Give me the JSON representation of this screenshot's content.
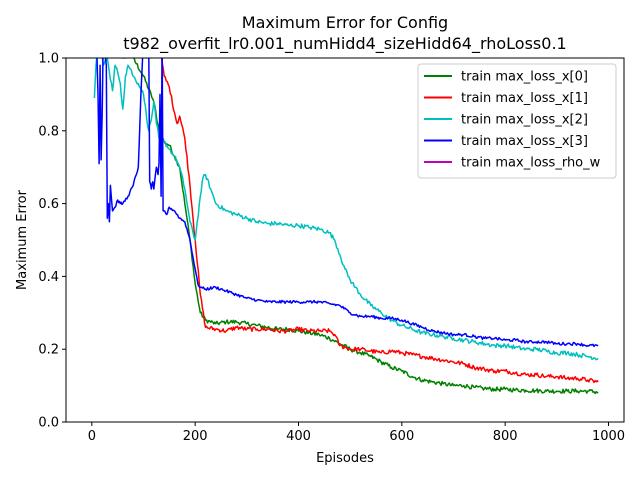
{
  "chart_data": {
    "type": "line",
    "title_line1": "Maximum Error for Config",
    "title_line2": "t982_overfit_lr0.001_numHidd4_sizeHidd64_rhoLoss0.1",
    "xlabel": "Episodes",
    "ylabel": "Maximum Error",
    "xlim": [
      -50,
      1030
    ],
    "ylim": [
      0.0,
      1.0
    ],
    "xticks": [
      0,
      200,
      400,
      600,
      800,
      1000
    ],
    "xtick_labels": [
      "0",
      "200",
      "400",
      "600",
      "800",
      "1000"
    ],
    "yticks": [
      0.0,
      0.2,
      0.4,
      0.6,
      0.8,
      1.0
    ],
    "ytick_labels": [
      "0.0",
      "0.2",
      "0.4",
      "0.6",
      "0.8",
      "1.0"
    ],
    "grid": false,
    "legend_position": "top-right",
    "series": [
      {
        "name": "train max_loss_x[0]",
        "color": "#008000",
        "noise": 0.006,
        "x": [
          20,
          40,
          60,
          80,
          100,
          120,
          130,
          140,
          150,
          160,
          170,
          180,
          190,
          200,
          210,
          220,
          240,
          260,
          280,
          300,
          320,
          340,
          360,
          380,
          400,
          420,
          440,
          460,
          480,
          500,
          520,
          540,
          560,
          580,
          600,
          620,
          640,
          660,
          680,
          700,
          720,
          740,
          760,
          780,
          800,
          820,
          840,
          860,
          880,
          900,
          920,
          940,
          960,
          980
        ],
        "y": [
          1.05,
          1.05,
          1.02,
          1.0,
          0.95,
          0.88,
          0.8,
          0.77,
          0.76,
          0.73,
          0.7,
          0.6,
          0.5,
          0.38,
          0.3,
          0.28,
          0.27,
          0.275,
          0.275,
          0.27,
          0.265,
          0.26,
          0.255,
          0.255,
          0.25,
          0.245,
          0.24,
          0.23,
          0.215,
          0.2,
          0.19,
          0.18,
          0.165,
          0.15,
          0.14,
          0.125,
          0.115,
          0.11,
          0.105,
          0.1,
          0.1,
          0.095,
          0.092,
          0.09,
          0.09,
          0.088,
          0.087,
          0.086,
          0.085,
          0.085,
          0.085,
          0.085,
          0.085,
          0.082
        ]
      },
      {
        "name": "train max_loss_x[1]",
        "color": "#ff0000",
        "noise": 0.006,
        "x": [
          20,
          40,
          60,
          80,
          100,
          120,
          135,
          140,
          150,
          160,
          165,
          170,
          180,
          190,
          200,
          210,
          220,
          240,
          260,
          280,
          300,
          320,
          340,
          360,
          380,
          400,
          420,
          440,
          460,
          470,
          480,
          500,
          520,
          540,
          560,
          580,
          600,
          620,
          640,
          660,
          680,
          700,
          720,
          740,
          760,
          780,
          800,
          820,
          840,
          860,
          880,
          900,
          920,
          940,
          960,
          980
        ],
        "y": [
          1.05,
          1.03,
          1.0,
          1.02,
          1.05,
          1.03,
          1.0,
          0.95,
          0.92,
          0.85,
          0.82,
          0.84,
          0.78,
          0.65,
          0.5,
          0.35,
          0.26,
          0.255,
          0.25,
          0.26,
          0.255,
          0.255,
          0.255,
          0.25,
          0.25,
          0.255,
          0.25,
          0.25,
          0.25,
          0.24,
          0.21,
          0.2,
          0.2,
          0.195,
          0.19,
          0.195,
          0.19,
          0.185,
          0.18,
          0.175,
          0.17,
          0.165,
          0.16,
          0.15,
          0.145,
          0.14,
          0.14,
          0.135,
          0.13,
          0.13,
          0.125,
          0.125,
          0.12,
          0.12,
          0.115,
          0.11
        ]
      },
      {
        "name": "train max_loss_x[2]",
        "color": "#00bfbf",
        "noise": 0.006,
        "x": [
          5,
          8,
          12,
          18,
          22,
          30,
          40,
          45,
          50,
          55,
          60,
          65,
          70,
          75,
          80,
          90,
          100,
          105,
          110,
          115,
          120,
          125,
          130,
          140,
          150,
          160,
          170,
          180,
          190,
          200,
          210,
          215,
          220,
          230,
          240,
          260,
          280,
          300,
          320,
          340,
          360,
          380,
          400,
          420,
          440,
          460,
          470,
          480,
          490,
          500,
          510,
          520,
          540,
          560,
          580,
          600,
          620,
          640,
          660,
          680,
          700,
          720,
          740,
          760,
          780,
          800,
          820,
          840,
          860,
          880,
          900,
          920,
          940,
          960,
          980
        ],
        "y": [
          0.89,
          0.98,
          1.05,
          1.03,
          0.98,
          1.0,
          0.91,
          0.98,
          0.96,
          0.93,
          0.86,
          0.95,
          0.98,
          0.97,
          0.95,
          0.93,
          0.9,
          0.85,
          0.8,
          0.83,
          0.88,
          0.82,
          0.78,
          0.77,
          0.75,
          0.73,
          0.7,
          0.64,
          0.55,
          0.5,
          0.62,
          0.67,
          0.68,
          0.64,
          0.6,
          0.58,
          0.57,
          0.56,
          0.55,
          0.545,
          0.545,
          0.54,
          0.54,
          0.535,
          0.53,
          0.52,
          0.5,
          0.46,
          0.42,
          0.39,
          0.37,
          0.35,
          0.32,
          0.3,
          0.28,
          0.265,
          0.255,
          0.245,
          0.24,
          0.235,
          0.23,
          0.225,
          0.22,
          0.215,
          0.21,
          0.21,
          0.205,
          0.2,
          0.2,
          0.195,
          0.19,
          0.19,
          0.185,
          0.18,
          0.175
        ]
      },
      {
        "name": "train max_loss_x[3]",
        "color": "#0000ff",
        "noise": 0.004,
        "x": [
          10,
          12,
          14,
          16,
          18,
          20,
          22,
          25,
          28,
          30,
          32,
          34,
          36,
          40,
          45,
          50,
          55,
          60,
          70,
          80,
          90,
          95,
          100,
          105,
          110,
          112,
          115,
          118,
          120,
          125,
          128,
          130,
          132,
          134,
          136,
          138,
          140,
          145,
          150,
          160,
          170,
          180,
          190,
          200,
          205,
          210,
          220,
          240,
          260,
          280,
          300,
          320,
          340,
          360,
          380,
          400,
          420,
          440,
          460,
          480,
          500,
          520,
          540,
          560,
          580,
          600,
          620,
          640,
          660,
          680,
          700,
          720,
          740,
          760,
          780,
          800,
          820,
          840,
          860,
          880,
          900,
          920,
          940,
          960,
          980
        ],
        "y": [
          1.0,
          0.9,
          0.71,
          0.98,
          0.72,
          0.85,
          1.05,
          1.02,
          0.98,
          0.56,
          0.6,
          0.55,
          0.65,
          0.58,
          0.59,
          0.61,
          0.6,
          0.6,
          0.62,
          0.65,
          0.7,
          0.9,
          1.05,
          1.0,
          1.05,
          0.66,
          0.64,
          0.66,
          0.64,
          0.7,
          0.68,
          0.71,
          0.9,
          0.62,
          1.05,
          0.58,
          0.58,
          0.57,
          0.59,
          0.58,
          0.56,
          0.55,
          0.5,
          0.42,
          0.38,
          0.37,
          0.365,
          0.37,
          0.36,
          0.35,
          0.34,
          0.335,
          0.33,
          0.33,
          0.33,
          0.33,
          0.33,
          0.33,
          0.325,
          0.32,
          0.3,
          0.29,
          0.29,
          0.285,
          0.285,
          0.28,
          0.27,
          0.26,
          0.25,
          0.245,
          0.24,
          0.24,
          0.235,
          0.23,
          0.23,
          0.225,
          0.225,
          0.22,
          0.22,
          0.22,
          0.215,
          0.215,
          0.215,
          0.21,
          0.21
        ]
      },
      {
        "name": "train max_loss_rho_w",
        "color": "#bf00bf",
        "x": [],
        "y": []
      }
    ]
  }
}
